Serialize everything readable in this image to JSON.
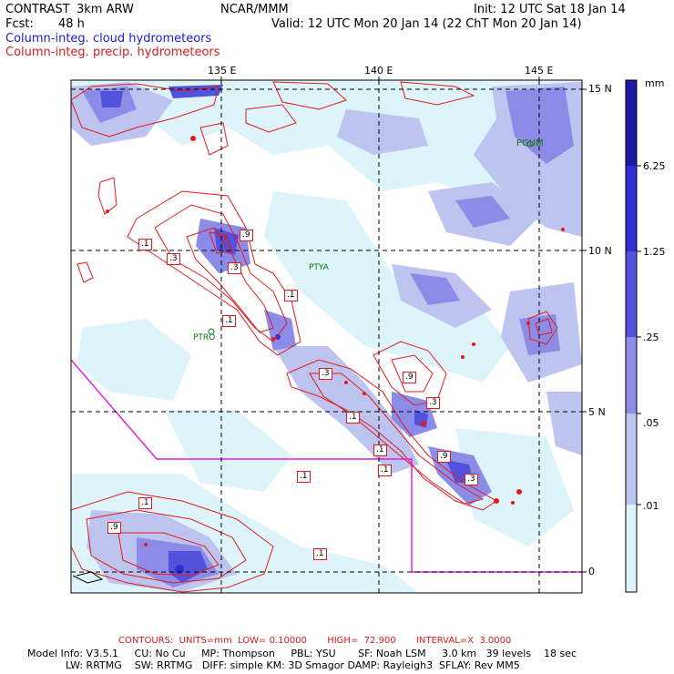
{
  "header": {
    "product": "CONTRAST",
    "model": "3km ARW",
    "org": "NCAR/MMM",
    "init": "Init: 12 UTC Sat 18 Jan 14",
    "fcst_label": "Fcst:",
    "fcst_value": "48 h",
    "valid": "Valid: 12 UTC Mon 20 Jan 14 (22 ChT Mon 20 Jan 14)",
    "line_blue": "Column-integ. cloud hydrometeors",
    "line_red": "Column-integ. precip. hydrometeors"
  },
  "map": {
    "lon_labels": [
      "135 E",
      "140 E",
      "145 E"
    ],
    "lat_labels": [
      "15 N",
      "10 N",
      "5 N",
      "0"
    ],
    "stations": [
      "PGUM",
      "PTYA",
      "PTRO"
    ],
    "contour_labels": [
      ".1",
      ".3",
      ".9",
      ".3",
      ".1",
      ".1",
      ".3",
      ".9",
      ".1",
      ".3",
      ".1",
      ".1",
      ".9",
      ".3",
      ".1",
      ".9",
      ".1",
      ".1"
    ]
  },
  "colorbar": {
    "unit": "mm",
    "labels": [
      "6.25",
      "1.25",
      ".25",
      ".05",
      ".01"
    ],
    "colors": [
      "#1a1aa6",
      "#2f2fd6",
      "#5252dd",
      "#8c8ce8",
      "#bcc4ef",
      "#ddf4fb",
      "#ffffff"
    ]
  },
  "footer": {
    "contours": "CONTOURS:  UNITS=mm  LOW= 0.10000       HIGH=  72.900       INTERVAL=X  3.0000",
    "line1": "Model Info: V3.5.1     CU: No Cu     MP: Thompson     PBL: YSU       SF: Noah LSM     3.0 km   39 levels    18 sec",
    "line2": "LW: RRTMG    SW: RRTMG   DIFF: simple KM: 3D Smagor DAMP: Rayleigh3  SFLAY: Rev MM5"
  }
}
